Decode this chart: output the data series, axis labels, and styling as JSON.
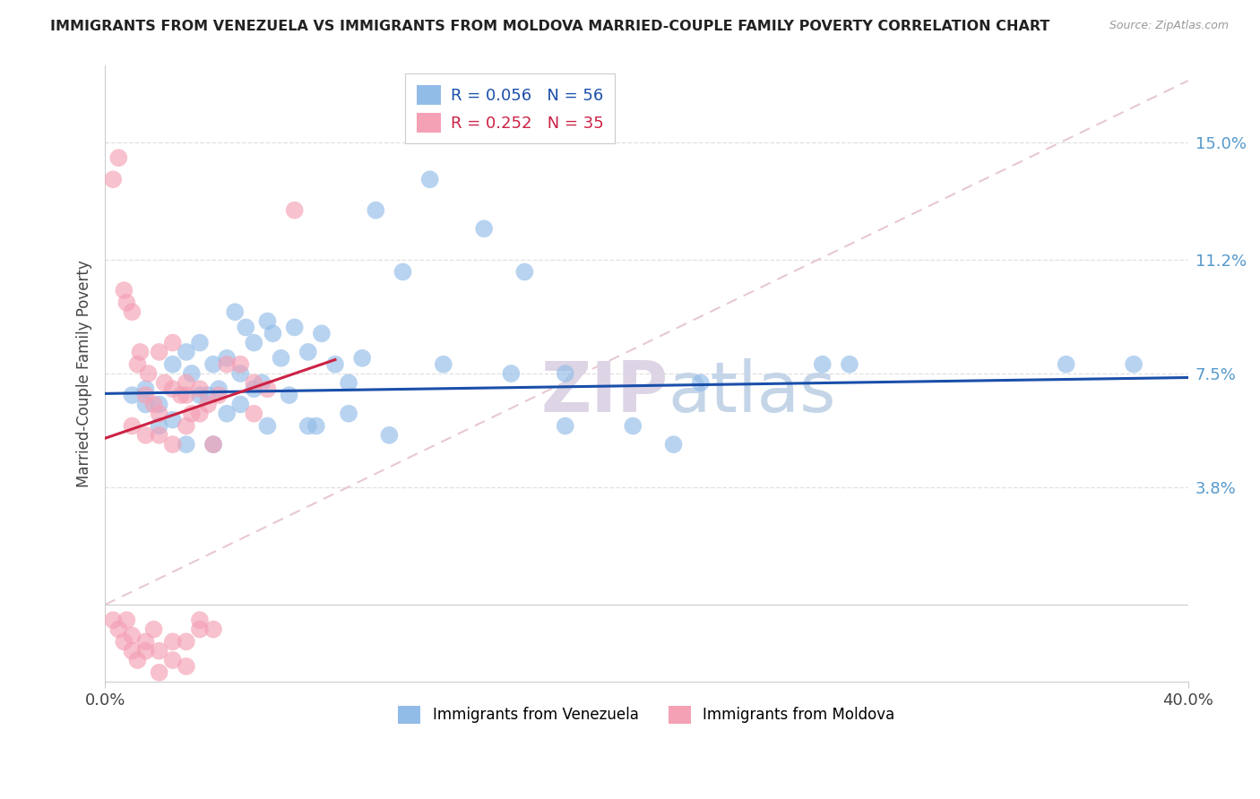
{
  "title": "IMMIGRANTS FROM VENEZUELA VS IMMIGRANTS FROM MOLDOVA MARRIED-COUPLE FAMILY POVERTY CORRELATION CHART",
  "source": "Source: ZipAtlas.com",
  "ylabel": "Married-Couple Family Poverty",
  "ytick_vals": [
    3.8,
    7.5,
    11.2,
    15.0
  ],
  "xlim": [
    0.0,
    40.0
  ],
  "ylim": [
    -2.5,
    17.5
  ],
  "venezuela_R": 0.056,
  "venezuela_N": 56,
  "moldova_R": 0.252,
  "moldova_N": 35,
  "venezuela_color": "#92bce8",
  "moldova_color": "#f4a0b5",
  "venezuela_line_color": "#1a4faa",
  "moldova_line_color": "#cc2244",
  "diagonal_color": "#e8c8d0",
  "watermark_color": "#e8e0ec",
  "background_color": "#ffffff",
  "grid_color": "#e0e0e0",
  "title_color": "#222222",
  "source_color": "#999999",
  "ylabel_color": "#444444",
  "ytick_color": "#5599cc",
  "xtick_color": "#444444",
  "venezuela_x": [
    1.0,
    1.5,
    2.0,
    2.5,
    3.0,
    3.2,
    3.5,
    3.8,
    4.0,
    4.2,
    4.5,
    4.8,
    5.0,
    5.2,
    5.5,
    5.8,
    6.0,
    6.2,
    6.5,
    7.0,
    7.5,
    8.0,
    8.5,
    9.0,
    9.5,
    10.0,
    11.0,
    12.0,
    14.0,
    15.5,
    17.0,
    19.5,
    22.0,
    26.5,
    38.0,
    2.0,
    3.0,
    4.0,
    5.5,
    6.8,
    7.8,
    9.0,
    10.5,
    12.5,
    15.0,
    17.0,
    21.0,
    27.5,
    35.5,
    1.5,
    2.5,
    3.5,
    4.5,
    5.0,
    6.0,
    7.5
  ],
  "venezuela_y": [
    6.8,
    7.0,
    6.5,
    7.8,
    8.2,
    7.5,
    8.5,
    6.8,
    7.8,
    7.0,
    8.0,
    9.5,
    7.5,
    9.0,
    8.5,
    7.2,
    9.2,
    8.8,
    8.0,
    9.0,
    8.2,
    8.8,
    7.8,
    7.2,
    8.0,
    12.8,
    10.8,
    13.8,
    12.2,
    10.8,
    7.5,
    5.8,
    7.2,
    7.8,
    7.8,
    5.8,
    5.2,
    5.2,
    7.0,
    6.8,
    5.8,
    6.2,
    5.5,
    7.8,
    7.5,
    5.8,
    5.2,
    7.8,
    7.8,
    6.5,
    6.0,
    6.8,
    6.2,
    6.5,
    5.8,
    5.8
  ],
  "moldova_x": [
    0.3,
    0.5,
    0.7,
    0.8,
    1.0,
    1.2,
    1.3,
    1.5,
    1.6,
    1.8,
    2.0,
    2.0,
    2.2,
    2.5,
    2.5,
    2.8,
    3.0,
    3.0,
    3.2,
    3.5,
    3.8,
    4.2,
    5.0,
    5.5,
    7.0,
    3.5,
    4.5,
    6.0,
    1.0,
    1.5,
    2.0,
    2.5,
    3.0,
    4.0,
    5.5
  ],
  "moldova_y": [
    13.8,
    14.5,
    10.2,
    9.8,
    9.5,
    7.8,
    8.2,
    6.8,
    7.5,
    6.5,
    6.2,
    8.2,
    7.2,
    7.0,
    8.5,
    6.8,
    7.2,
    6.8,
    6.2,
    7.0,
    6.5,
    6.8,
    7.8,
    7.2,
    12.8,
    6.2,
    7.8,
    7.0,
    5.8,
    5.5,
    5.5,
    5.2,
    5.8,
    5.2,
    6.2
  ]
}
